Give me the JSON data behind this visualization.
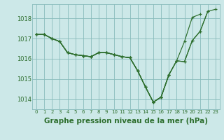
{
  "background_color": "#cce8e8",
  "grid_color": "#88bbbb",
  "line_color": "#2d6e2d",
  "marker_color": "#2d6e2d",
  "xlabel": "Graphe pression niveau de la mer (hPa)",
  "xlabel_fontsize": 7.5,
  "ylim": [
    1013.5,
    1018.7
  ],
  "xlim": [
    -0.5,
    23.5
  ],
  "yticks": [
    1014,
    1015,
    1016,
    1017,
    1018
  ],
  "xticks": [
    0,
    1,
    2,
    3,
    4,
    5,
    6,
    7,
    8,
    9,
    10,
    11,
    12,
    13,
    14,
    15,
    16,
    17,
    18,
    19,
    20,
    21,
    22,
    23
  ],
  "series": [
    [
      1017.2,
      1017.2,
      1017.0,
      1016.85,
      1016.3,
      1016.2,
      1016.15,
      1016.1,
      1016.3,
      1016.3,
      1016.2,
      1016.1,
      1016.05,
      1015.4,
      1014.6,
      1013.85,
      1014.1,
      1015.2,
      null,
      null,
      null,
      null,
      null,
      null
    ],
    [
      1017.2,
      1017.2,
      1017.0,
      1016.85,
      1016.3,
      1016.2,
      1016.15,
      1016.1,
      1016.3,
      1016.3,
      1016.2,
      1016.1,
      1016.05,
      1015.4,
      1014.6,
      1013.85,
      1014.1,
      1015.2,
      1015.9,
      1016.85,
      1018.05,
      1018.2,
      null,
      null
    ],
    [
      1017.2,
      1017.2,
      1017.0,
      1016.85,
      1016.3,
      1016.2,
      1016.15,
      1016.1,
      1016.3,
      1016.3,
      1016.2,
      1016.1,
      1016.05,
      1015.4,
      1014.6,
      1013.85,
      1014.1,
      1015.2,
      1015.9,
      1015.85,
      1016.9,
      1017.35,
      1018.35,
      null
    ],
    [
      1017.2,
      1017.2,
      1017.0,
      1016.85,
      1016.3,
      1016.2,
      1016.15,
      1016.1,
      1016.3,
      1016.3,
      1016.2,
      1016.1,
      1016.05,
      1015.4,
      1014.6,
      1013.85,
      1014.1,
      1015.2,
      1015.9,
      1015.85,
      1016.9,
      1017.35,
      1018.35,
      1018.45
    ]
  ]
}
